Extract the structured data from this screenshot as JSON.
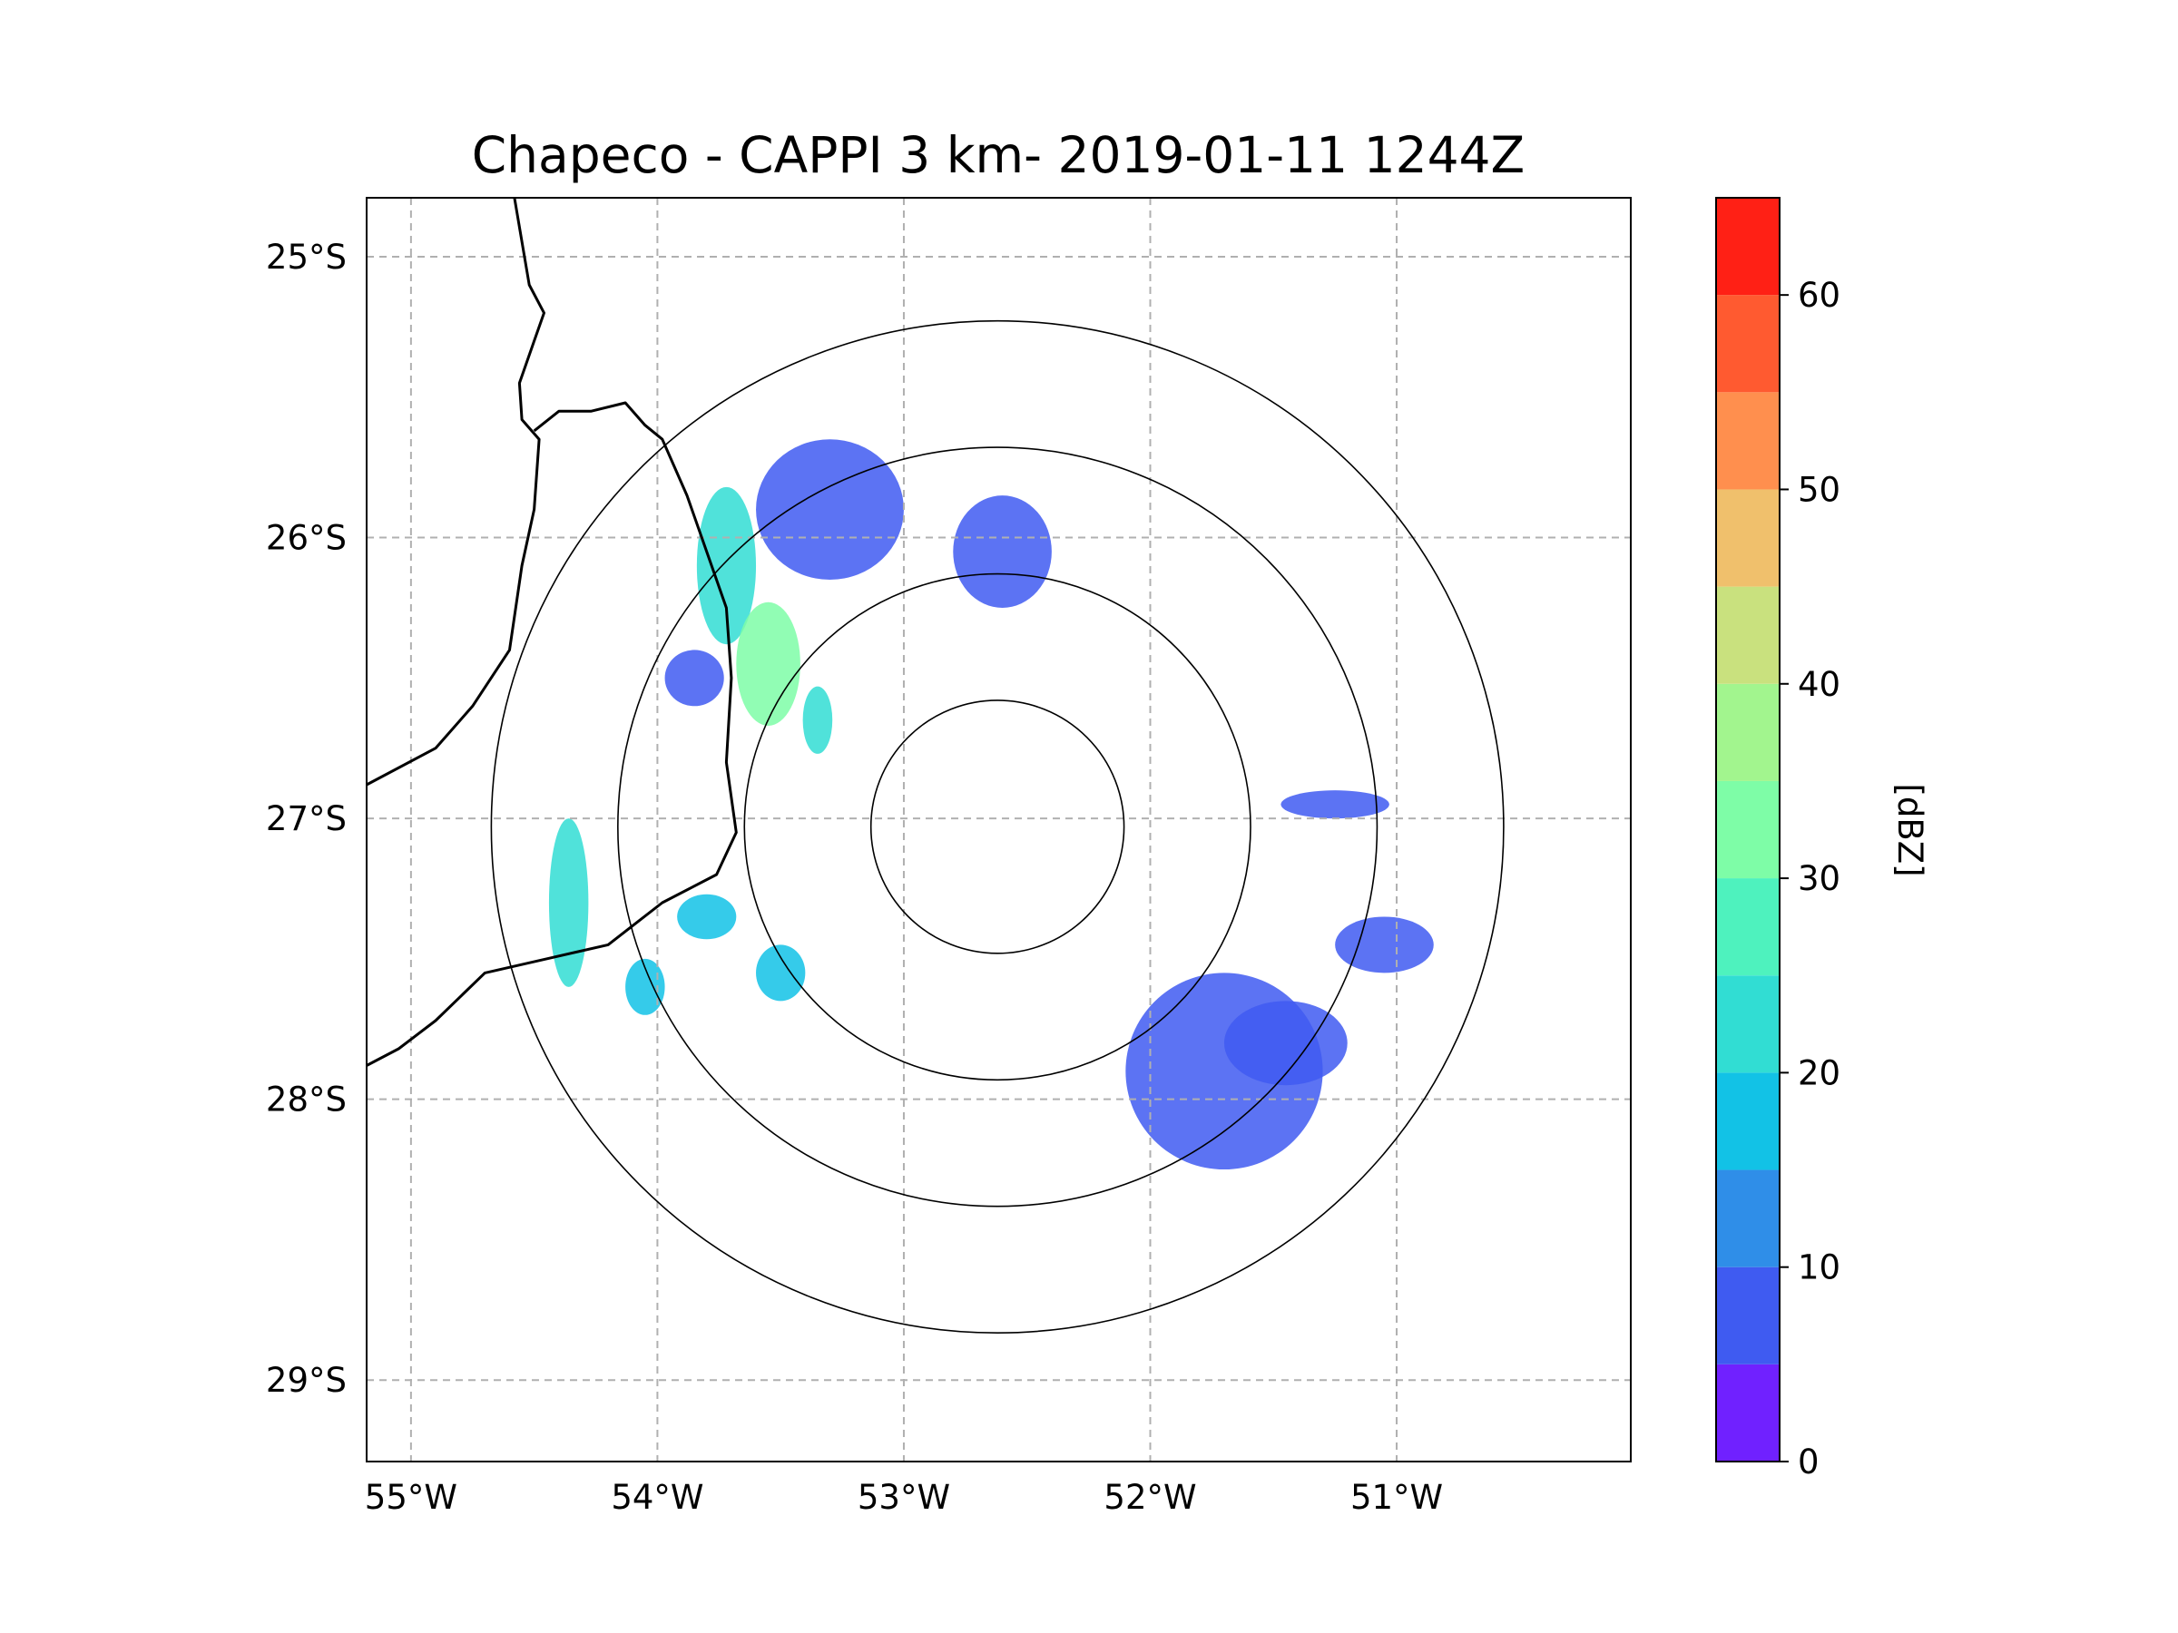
{
  "chart_data": {
    "type": "heatmap",
    "title": "Chapeco - CAPPI 3 km- 2019-01-11 1244Z",
    "map": {
      "lon_range": [
        -55.18,
        -50.05
      ],
      "lat_range": [
        -29.29,
        -24.79
      ],
      "lon_ticks": [
        {
          "value": -55,
          "label": "55°W"
        },
        {
          "value": -54,
          "label": "54°W"
        },
        {
          "value": -53,
          "label": "53°W"
        },
        {
          "value": -52,
          "label": "52°W"
        },
        {
          "value": -51,
          "label": "51°W"
        }
      ],
      "lat_ticks": [
        {
          "value": -25,
          "label": "25°S"
        },
        {
          "value": -26,
          "label": "26°S"
        },
        {
          "value": -27,
          "label": "27°S"
        },
        {
          "value": -28,
          "label": "28°S"
        },
        {
          "value": -29,
          "label": "29°S"
        }
      ],
      "gridlines": true,
      "radar_center": {
        "lon": -52.62,
        "lat": -27.03
      },
      "range_rings_km": [
        50,
        100,
        150,
        200
      ],
      "borders": [
        [
          [
            -54.58,
            -24.79
          ],
          [
            -54.52,
            -25.1
          ],
          [
            -54.46,
            -25.2
          ],
          [
            -54.5,
            -25.3
          ],
          [
            -54.56,
            -25.45
          ],
          [
            -54.55,
            -25.58
          ],
          [
            -54.48,
            -25.65
          ],
          [
            -54.5,
            -25.9
          ],
          [
            -54.55,
            -26.1
          ],
          [
            -54.6,
            -26.4
          ],
          [
            -54.75,
            -26.6
          ],
          [
            -54.9,
            -26.75
          ],
          [
            -55.18,
            -26.88
          ]
        ],
        [
          [
            -54.5,
            -25.62
          ],
          [
            -54.4,
            -25.55
          ],
          [
            -54.27,
            -25.55
          ],
          [
            -54.13,
            -25.52
          ],
          [
            -54.05,
            -25.6
          ],
          [
            -53.98,
            -25.65
          ],
          [
            -53.88,
            -25.85
          ],
          [
            -53.8,
            -26.05
          ],
          [
            -53.72,
            -26.25
          ],
          [
            -53.7,
            -26.5
          ],
          [
            -53.72,
            -26.8
          ],
          [
            -53.68,
            -27.05
          ],
          [
            -53.76,
            -27.2
          ],
          [
            -53.98,
            -27.3
          ],
          [
            -54.2,
            -27.45
          ],
          [
            -54.45,
            -27.5
          ],
          [
            -54.7,
            -27.55
          ],
          [
            -54.9,
            -27.72
          ],
          [
            -55.05,
            -27.82
          ],
          [
            -55.18,
            -27.88
          ]
        ]
      ]
    },
    "colorbar": {
      "label": "[dBZ]",
      "vmin": 0,
      "vmax": 65,
      "bounds": [
        0,
        5,
        10,
        15,
        20,
        25,
        30,
        35,
        40,
        45,
        50,
        55,
        60,
        65
      ],
      "colors": [
        "#7021ff",
        "#3f5bf1",
        "#2f8ee8",
        "#12c2e6",
        "#31ddd3",
        "#4ef2be",
        "#7efda7",
        "#a2f58e",
        "#c9e17e",
        "#f0c06c",
        "#ff8f4e",
        "#ff5a30",
        "#ff2015"
      ],
      "ticks": [
        0,
        10,
        20,
        30,
        40,
        50,
        60
      ]
    },
    "echoes": [
      {
        "lon": -53.72,
        "lat": -26.1,
        "rx": 0.12,
        "ry": 0.28,
        "dbz": 22
      },
      {
        "lon": -53.55,
        "lat": -26.45,
        "rx": 0.13,
        "ry": 0.22,
        "dbz": 30
      },
      {
        "lon": -53.35,
        "lat": -26.65,
        "rx": 0.06,
        "ry": 0.12,
        "dbz": 20
      },
      {
        "lon": -54.36,
        "lat": -27.3,
        "rx": 0.08,
        "ry": 0.3,
        "dbz": 20
      },
      {
        "lon": -53.8,
        "lat": -27.35,
        "rx": 0.12,
        "ry": 0.08,
        "dbz": 15
      },
      {
        "lon": -53.5,
        "lat": -27.55,
        "rx": 0.1,
        "ry": 0.1,
        "dbz": 15
      },
      {
        "lon": -54.05,
        "lat": -27.6,
        "rx": 0.08,
        "ry": 0.1,
        "dbz": 16
      },
      {
        "lon": -53.3,
        "lat": -25.9,
        "rx": 0.3,
        "ry": 0.25,
        "dbz": 6
      },
      {
        "lon": -52.6,
        "lat": -26.05,
        "rx": 0.2,
        "ry": 0.2,
        "dbz": 8
      },
      {
        "lon": -51.7,
        "lat": -27.9,
        "rx": 0.4,
        "ry": 0.35,
        "dbz": 6
      },
      {
        "lon": -51.45,
        "lat": -27.8,
        "rx": 0.25,
        "ry": 0.15,
        "dbz": 9
      },
      {
        "lon": -51.25,
        "lat": -26.95,
        "rx": 0.22,
        "ry": 0.05,
        "dbz": 8
      },
      {
        "lon": -53.85,
        "lat": -26.5,
        "rx": 0.12,
        "ry": 0.1,
        "dbz": 5
      },
      {
        "lon": -51.05,
        "lat": -27.45,
        "rx": 0.2,
        "ry": 0.1,
        "dbz": 5
      }
    ]
  }
}
